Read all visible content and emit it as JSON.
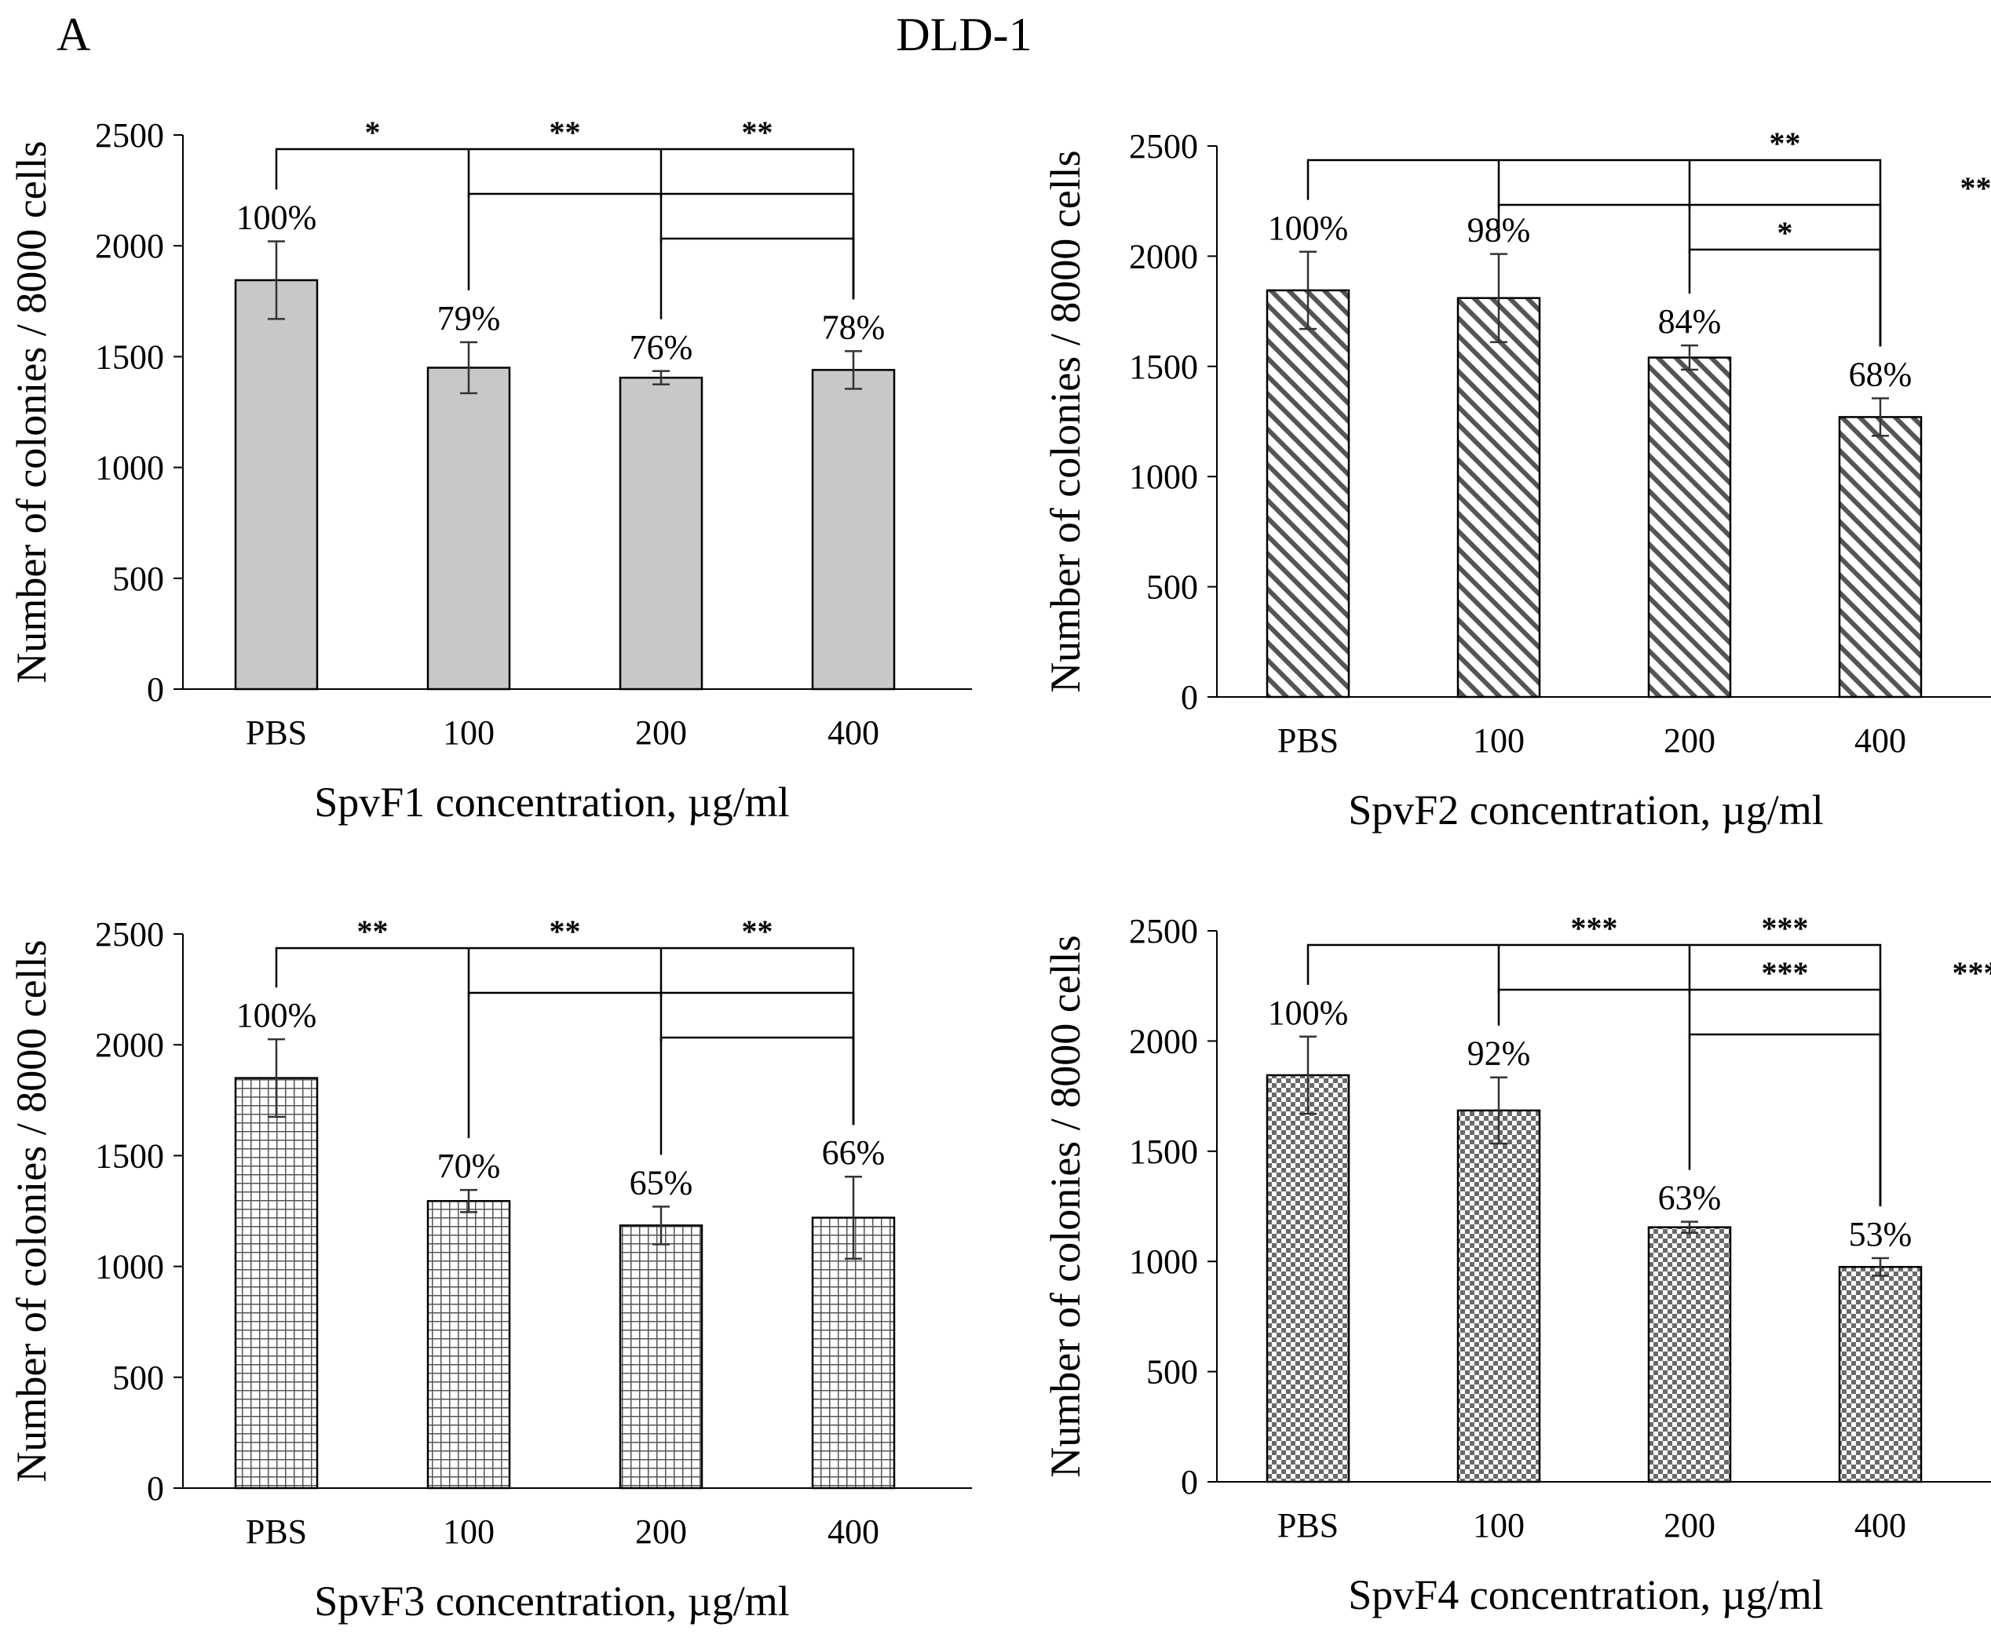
{
  "figure": {
    "panel_letter": "A",
    "title": "DLD-1"
  },
  "chart_data": [
    {
      "type": "bar",
      "id": "spvf1",
      "pattern": "solid",
      "title": "",
      "xlabel": "SpvF1 concentration, µg/ml",
      "ylabel": "Number of colonies / 8000 cells",
      "ylim": [
        0,
        2500
      ],
      "yticks": [
        0,
        500,
        1000,
        1500,
        2000,
        2500
      ],
      "categories": [
        "PBS",
        "100",
        "200",
        "400"
      ],
      "values": [
        1845,
        1450,
        1405,
        1440
      ],
      "errors": [
        175,
        115,
        30,
        85
      ],
      "percent_labels": [
        "100%",
        "79%",
        "76%",
        "78%"
      ],
      "significance": [
        {
          "from": 0,
          "to": 3,
          "level": 0,
          "stars": [
            "*",
            "**",
            "**"
          ],
          "drops": [
            1,
            2
          ]
        },
        {
          "from": 1,
          "to": 3,
          "level": 1,
          "stars": [],
          "drops": [
            2
          ]
        },
        {
          "from": 2,
          "to": 3,
          "level": 2,
          "stars": [],
          "drops": []
        }
      ]
    },
    {
      "type": "bar",
      "id": "spvf2",
      "pattern": "diagonal",
      "title": "",
      "xlabel": "SpvF2 concentration, µg/ml",
      "ylabel": "Number of colonies / 8000 cells",
      "ylim": [
        0,
        2500
      ],
      "yticks": [
        0,
        500,
        1000,
        1500,
        2000,
        2500
      ],
      "categories": [
        "PBS",
        "100",
        "200",
        "400"
      ],
      "values": [
        1845,
        1810,
        1540,
        1270
      ],
      "errors": [
        175,
        200,
        55,
        85
      ],
      "percent_labels": [
        "100%",
        "98%",
        "84%",
        "68%"
      ],
      "significance": [
        {
          "from": 0,
          "to": 3,
          "level": 0,
          "stars": [
            "",
            "",
            "**"
          ],
          "drops": [
            1,
            2
          ]
        },
        {
          "from": 1,
          "to": 3,
          "level": 1,
          "stars": [
            "",
            "",
            "**"
          ],
          "drops": [
            2
          ]
        },
        {
          "from": 2,
          "to": 3,
          "level": 2,
          "stars": [
            "*"
          ],
          "drops": []
        }
      ]
    },
    {
      "type": "bar",
      "id": "spvf3",
      "pattern": "grid",
      "title": "",
      "xlabel": "SpvF3 concentration, µg/ml",
      "ylabel": "Number of colonies / 8000 cells",
      "ylim": [
        0,
        2500
      ],
      "yticks": [
        0,
        500,
        1000,
        1500,
        2000,
        2500
      ],
      "categories": [
        "PBS",
        "100",
        "200",
        "400"
      ],
      "values": [
        1850,
        1295,
        1185,
        1220
      ],
      "errors": [
        175,
        50,
        85,
        185
      ],
      "percent_labels": [
        "100%",
        "70%",
        "65%",
        "66%"
      ],
      "significance": [
        {
          "from": 0,
          "to": 3,
          "level": 0,
          "stars": [
            "**",
            "**",
            "**"
          ],
          "drops": [
            1,
            2
          ]
        },
        {
          "from": 1,
          "to": 3,
          "level": 1,
          "stars": [],
          "drops": [
            2
          ]
        },
        {
          "from": 2,
          "to": 3,
          "level": 2,
          "stars": [],
          "drops": []
        }
      ]
    },
    {
      "type": "bar",
      "id": "spvf4",
      "pattern": "checker",
      "title": "",
      "xlabel": "SpvF4 concentration, µg/ml",
      "ylabel": "Number of colonies / 8000 cells",
      "ylim": [
        0,
        2500
      ],
      "yticks": [
        0,
        500,
        1000,
        1500,
        2000,
        2500
      ],
      "categories": [
        "PBS",
        "100",
        "200",
        "400"
      ],
      "values": [
        1845,
        1685,
        1155,
        975
      ],
      "errors": [
        175,
        150,
        25,
        40
      ],
      "percent_labels": [
        "100%",
        "92%",
        "63%",
        "53%"
      ],
      "significance": [
        {
          "from": 0,
          "to": 3,
          "level": 0,
          "stars": [
            "",
            "***",
            "***"
          ],
          "drops": [
            1,
            2
          ]
        },
        {
          "from": 1,
          "to": 3,
          "level": 1,
          "stars": [
            "",
            "***",
            "***"
          ],
          "drops": [
            2
          ]
        },
        {
          "from": 2,
          "to": 3,
          "level": 2,
          "stars": [],
          "drops": []
        }
      ]
    }
  ]
}
